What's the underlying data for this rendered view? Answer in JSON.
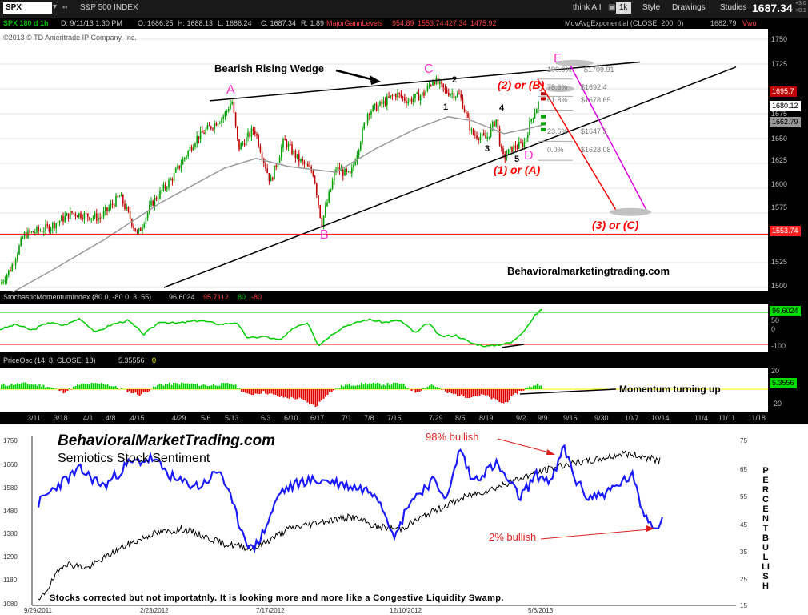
{
  "toolbar": {
    "symbol": "SPX",
    "instrument": "S&P 500 INDEX",
    "think_label": "think A.I",
    "interval_box": "1k",
    "style_label": "Style",
    "drawings_label": "Drawings",
    "studies_label": "Studies",
    "last_price": "1687.34",
    "change_line1": "+3.0",
    "change_line2": "+0.1"
  },
  "header": {
    "aggregation": "SPX 180 d 1h",
    "date": "D: 9/11/13 1:30 PM",
    "open": "O:  1686.25",
    "high": "H:  1688.13",
    "low": "L:  1686.24",
    "close": "C:  1687.34",
    "range": "R:  1.89",
    "gann_label": "MajorGannLevels",
    "gann_1": "954.89",
    "gann_2": "1553.74",
    "gann_3": "427.34",
    "gann_4": "1475.92",
    "ema_label": "MovAvgExponential (CLOSE, 200, 0)",
    "ema_value": "1682.79",
    "vwap_label": "Vwo",
    "copyright": "©2013 © TD Ameritrade IP Company, Inc."
  },
  "annotations": {
    "title": "Bearish Rising Wedge",
    "A": "A",
    "B": "B",
    "C": "C",
    "D": "D",
    "E": "E",
    "w1": "1",
    "w2": "2",
    "w3": "3",
    "w4": "4",
    "w5": "5",
    "two_or_b": "(2) or (B)",
    "one_or_a": "(1) or (A)",
    "three_or_c": "(3) or (C)",
    "site": "Behavioralmarketingtrading.com",
    "momentum": "Momentum turning up",
    "fib_100": "100.0%",
    "fib_100_val": "$1709.91",
    "fib_786": "78.6%",
    "fib_786_val": "$1692.4",
    "fib_618": "61.8%",
    "fib_618_val": "$1678.65",
    "fib_236": "23.6%",
    "fib_236_val": "$1647.3",
    "fib_0": "0.0%",
    "fib_0_val": "$1628.08"
  },
  "price_axis": {
    "ticks": [
      "1750",
      "1725",
      "1700",
      "1675",
      "1650",
      "1625",
      "1600",
      "1575",
      "1550",
      "1525",
      "1500"
    ],
    "tag_1695": "1695.7",
    "tag_1680": "1680.12",
    "tag_1662": "1662.79",
    "tag_1553": "1553.74"
  },
  "smi": {
    "label": "StochasticMomentumIndex (80.0, -80.0, 3, 55)",
    "v1": "96.6024",
    "v2": "95.7112",
    "v3": "80",
    "v4": "-80",
    "tag": "96.6024",
    "axis": [
      "50",
      "0",
      "-100"
    ]
  },
  "pricosc": {
    "label": "PriceOsc (14, 8, CLOSE, 18)",
    "v1": "5.35556",
    "v2": "0",
    "tag": "5.3556",
    "axis": [
      "20",
      "-20"
    ]
  },
  "x_axis": [
    "3/11",
    "3/18",
    "4/1",
    "4/8",
    "4/15",
    "4/29",
    "5/6",
    "5/13",
    "6/3",
    "6/10",
    "6/17",
    "7/1",
    "7/8",
    "7/15",
    "7/29",
    "8/5",
    "8/19",
    "9/2",
    "9/9",
    "9/16",
    "9/30",
    "10/7",
    "10/14",
    "11/4",
    "11/11",
    "11/18"
  ],
  "sentiment": {
    "title": "BehavioralMarketTrading.com",
    "subtitle": "Semiotics Stock Sentiment",
    "bullish98": "98% bullish",
    "bullish2": "2% bullish",
    "caption": "Stocks corrected but not importatnly. It is looking more and more like a Congestive Liquidity Swamp.",
    "y_right_label": "PERCENT BULLISH",
    "left_ticks": [
      "1750",
      "1660",
      "1580",
      "1480",
      "1380",
      "1290",
      "1180",
      "1080"
    ],
    "right_ticks": [
      "75",
      "65",
      "55",
      "45",
      "35",
      "25",
      "15"
    ],
    "x_ticks": [
      "9/29/2011",
      "2/23/2012",
      "7/17/2012",
      "12/10/2012",
      "5/6/2013"
    ]
  },
  "colors": {
    "candle_up": "#00a000",
    "candle_down": "#c00000",
    "ema": "#999999",
    "pink": "#ff33cc",
    "red": "#ff0000",
    "sentiment_blue": "#1a1aff",
    "green": "#00cc00"
  },
  "chart_data": [
    {
      "type": "line",
      "title": "",
      "series": [
        {
          "name": "SPX",
          "x": [
            "3/11",
            "4/15",
            "5/13",
            "6/17",
            "7/29",
            "8/5",
            "8/28",
            "9/11"
          ],
          "values": [
            1545,
            1552,
            1680,
            1562,
            1710,
            1695,
            1628,
            1687
          ]
        }
      ],
      "ylim": [
        1500,
        1750
      ]
    },
    {
      "type": "line",
      "title": "",
      "series": [
        {
          "name": "Semiotics Stock Sentiment",
          "x": [
            "9/29/2011",
            "2/23/2012",
            "7/17/2012",
            "12/10/2012",
            "5/6/2013"
          ],
          "values": [
            60,
            67,
            35,
            40,
            72
          ]
        }
      ],
      "ylim": [
        15,
        75
      ]
    }
  ]
}
